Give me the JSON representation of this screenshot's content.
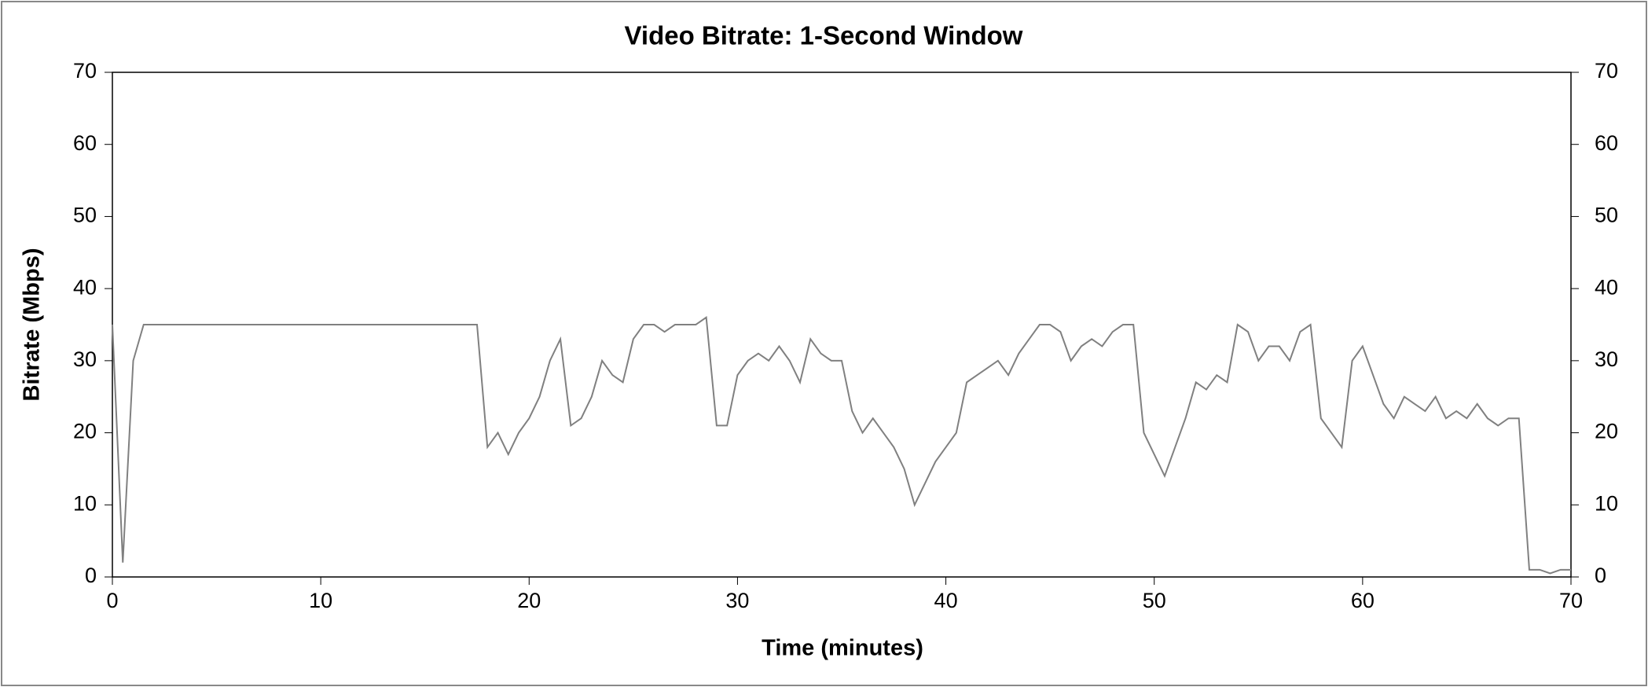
{
  "chart_data": {
    "type": "line",
    "title": "Video Bitrate: 1-Second Window",
    "x_label": "Time (minutes)",
    "y_label": "Bitrate (Mbps)",
    "xlim": [
      0,
      70
    ],
    "xticks": [
      0,
      10,
      20,
      30,
      40,
      50,
      60,
      70
    ],
    "ylim": [
      0,
      70
    ],
    "yticks": [
      0,
      10,
      20,
      30,
      40,
      50,
      60,
      70
    ],
    "y2lim": [
      0,
      70
    ],
    "y2ticks": [
      0,
      10,
      20,
      30,
      40,
      50,
      60,
      70
    ],
    "series": [
      {
        "color": "#808080",
        "x": [
          0,
          0.5,
          1,
          1.5,
          2,
          2.5,
          3,
          3.5,
          4,
          4.5,
          5,
          5.5,
          6,
          6.5,
          7,
          7.5,
          8,
          8.5,
          9,
          9.5,
          10,
          10.5,
          11,
          11.5,
          12,
          12.5,
          13,
          13.5,
          14,
          14.5,
          15,
          15.5,
          16,
          16.5,
          17,
          17.5,
          18,
          18.5,
          19,
          19.5,
          20,
          20.5,
          21,
          21.5,
          22,
          22.5,
          23,
          23.5,
          24,
          24.5,
          25,
          25.5,
          26,
          26.5,
          27,
          27.5,
          28,
          28.5,
          29,
          29.5,
          30,
          30.5,
          31,
          31.5,
          32,
          32.5,
          33,
          33.5,
          34,
          34.5,
          35,
          35.5,
          36,
          36.5,
          37,
          37.5,
          38,
          38.5,
          39,
          39.5,
          40,
          40.5,
          41,
          41.5,
          42,
          42.5,
          43,
          43.5,
          44,
          44.5,
          45,
          45.5,
          46,
          46.5,
          47,
          47.5,
          48,
          48.5,
          49,
          49.5,
          50,
          50.5,
          51,
          51.5,
          52,
          52.5,
          53,
          53.5,
          54,
          54.5,
          55,
          55.5,
          56,
          56.5,
          57,
          57.5,
          58,
          58.5,
          59,
          59.5,
          60,
          60.5,
          61,
          61.5,
          62,
          62.5,
          63,
          63.5,
          64,
          64.5,
          65,
          65.5,
          66,
          66.5,
          67,
          67.5,
          68,
          68.5,
          69,
          69.5,
          70
        ],
        "values": [
          35,
          2,
          30,
          35,
          35,
          35,
          35,
          35,
          35,
          35,
          35,
          35,
          35,
          35,
          35,
          35,
          35,
          35,
          35,
          35,
          35,
          35,
          35,
          35,
          35,
          35,
          35,
          35,
          35,
          35,
          35,
          35,
          35,
          35,
          35,
          35,
          18,
          20,
          17,
          20,
          22,
          25,
          30,
          33,
          21,
          22,
          25,
          30,
          28,
          27,
          33,
          35,
          35,
          34,
          35,
          35,
          35,
          36,
          21,
          21,
          28,
          30,
          31,
          30,
          32,
          30,
          27,
          33,
          31,
          30,
          30,
          23,
          20,
          22,
          20,
          18,
          15,
          10,
          13,
          16,
          18,
          20,
          27,
          28,
          29,
          30,
          28,
          31,
          33,
          35,
          35,
          34,
          30,
          32,
          33,
          32,
          34,
          35,
          35,
          20,
          17,
          14,
          18,
          22,
          27,
          26,
          28,
          27,
          35,
          34,
          30,
          32,
          32,
          30,
          34,
          35,
          22,
          20,
          18,
          30,
          32,
          28,
          24,
          22,
          25,
          24,
          23,
          25,
          22,
          23,
          22,
          24,
          22,
          21,
          22,
          22,
          1,
          1,
          0.5,
          1,
          1
        ]
      }
    ]
  }
}
